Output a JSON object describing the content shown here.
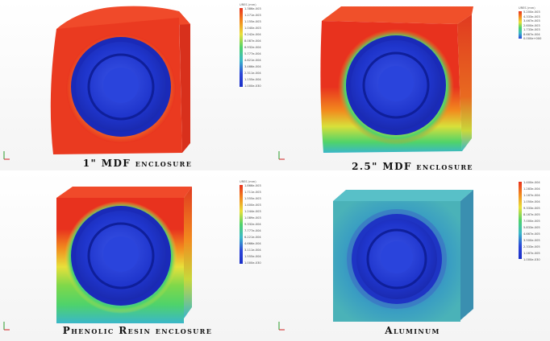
{
  "panels": [
    {
      "caption": "1\" MDF enclosure",
      "legend_header": "URES (mm)",
      "legend_ticks": [
        "1.386e-003",
        "1.271e-003",
        "1.155e-003",
        "1.040e-003",
        "9.242e-004",
        "8.087e-004",
        "6.932e-004",
        "5.777e-004",
        "4.621e-004",
        "3.466e-004",
        "2.311e-004",
        "1.155e-004",
        "1.000e-030"
      ]
    },
    {
      "caption": "2.5\" MDF enclosure",
      "legend_header": "URES (mm)",
      "legend_ticks": [
        "5.200e-003",
        "4.333e-003",
        "3.467e-003",
        "2.600e-003",
        "1.733e-003",
        "8.667e-004",
        "0.000e+000"
      ]
    },
    {
      "caption": "Phenolic Resin  enclosure",
      "legend_header": "URES (mm)",
      "legend_ticks": [
        "1.866e-003",
        "1.711e-003",
        "1.555e-003",
        "1.400e-003",
        "1.244e-003",
        "1.089e-003",
        "9.332e-004",
        "7.777e-004",
        "6.221e-004",
        "4.666e-004",
        "3.111e-004",
        "1.555e-004",
        "1.000e-030"
      ]
    },
    {
      "caption": "Aluminum",
      "legend_header": "",
      "legend_ticks": [
        "1.400e-004",
        "1.283e-004",
        "1.167e-004",
        "1.050e-004",
        "9.333e-005",
        "8.167e-005",
        "7.000e-005",
        "5.833e-005",
        "4.667e-005",
        "3.500e-005",
        "2.333e-005",
        "1.167e-005",
        "1.000e-030"
      ]
    }
  ],
  "colors": {
    "max": "#e8321e",
    "high": "#f28a1e",
    "mid_high": "#e8e03a",
    "mid": "#4fd36a",
    "mid_low": "#3ab7c9",
    "low": "#2b46d8",
    "min": "#1a2fc8"
  }
}
